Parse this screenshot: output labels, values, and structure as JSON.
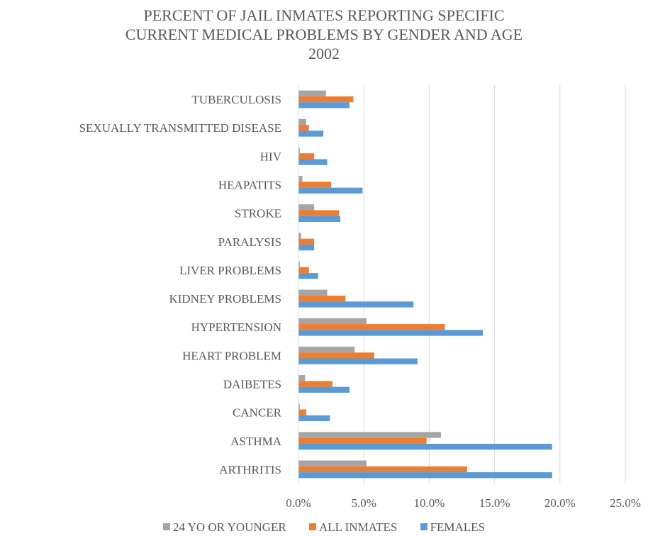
{
  "chart_data": {
    "type": "bar",
    "orientation": "horizontal",
    "title_lines": [
      "PERCENT OF JAIL INMATES REPORTING SPECIFIC",
      "CURRENT MEDICAL PROBLEMS BY GENDER AND AGE",
      "2002"
    ],
    "categories": [
      "TUBERCULOSIS",
      "SEXUALLY TRANSMITTED DISEASE",
      "HIV",
      "HEAPATITS",
      "STROKE",
      "PARALYSIS",
      "LIVER PROBLEMS",
      "KIDNEY PROBLEMS",
      "HYPERTENSION",
      "HEART PROBLEM",
      "DAIBETES",
      "CANCER",
      "ASTHMA",
      "ARTHRITIS"
    ],
    "series": [
      {
        "name": "24 YO OR YOUNGER",
        "color": "#a5a5a5",
        "values": [
          2.1,
          0.6,
          0.1,
          0.3,
          1.2,
          0.2,
          0.1,
          2.2,
          5.2,
          4.3,
          0.5,
          0.1,
          10.9,
          5.2
        ]
      },
      {
        "name": "ALL INMATES",
        "color": "#ed7d31",
        "values": [
          4.2,
          0.8,
          1.2,
          2.5,
          3.1,
          1.2,
          0.8,
          3.6,
          11.2,
          5.8,
          2.6,
          0.6,
          9.8,
          12.9
        ]
      },
      {
        "name": "FEMALES",
        "color": "#5b9bd5",
        "values": [
          3.9,
          1.9,
          2.2,
          4.9,
          3.2,
          1.2,
          1.5,
          8.8,
          14.1,
          9.1,
          3.9,
          2.4,
          19.4,
          19.4
        ]
      }
    ],
    "xlim": [
      0,
      25
    ],
    "xticks": [
      0,
      5,
      10,
      15,
      20,
      25
    ],
    "xtick_labels": [
      "0.0%",
      "5.0%",
      "10.0%",
      "15.0%",
      "20.0%",
      "25.0%"
    ],
    "grid": true,
    "legend_position": "bottom"
  }
}
